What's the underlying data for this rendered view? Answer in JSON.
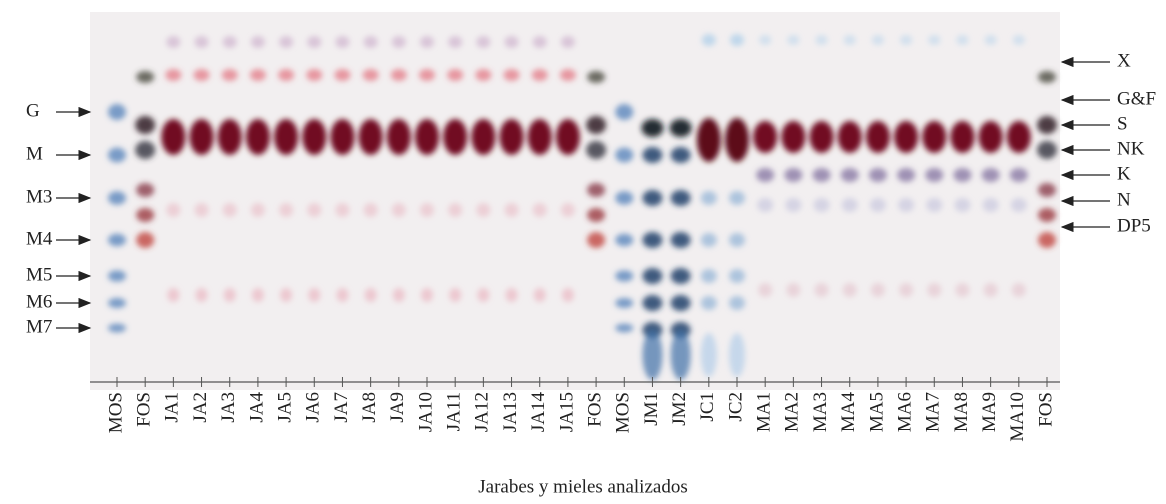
{
  "left_labels": [
    "G",
    "M",
    "M3",
    "M4",
    "M5",
    "M6",
    "M7"
  ],
  "right_labels": [
    "X",
    "G&F",
    "S",
    "NK",
    "K",
    "N",
    "DP5"
  ],
  "lanes": [
    "MOS",
    "FOS",
    "JA1",
    "JA2",
    "JA3",
    "JA4",
    "JA5",
    "JA6",
    "JA7",
    "JA8",
    "JA9",
    "JA10",
    "JA11",
    "JA12",
    "JA13",
    "JA14",
    "JA15",
    "FOS",
    "MOS",
    "JM1",
    "JM2",
    "JC1",
    "JC2",
    "MA1",
    "MA2",
    "MA3",
    "MA4",
    "MA5",
    "MA6",
    "MA7",
    "MA8",
    "MA9",
    "MA10",
    "FOS"
  ],
  "x_title": "Jarabes y mieles analizados"
}
